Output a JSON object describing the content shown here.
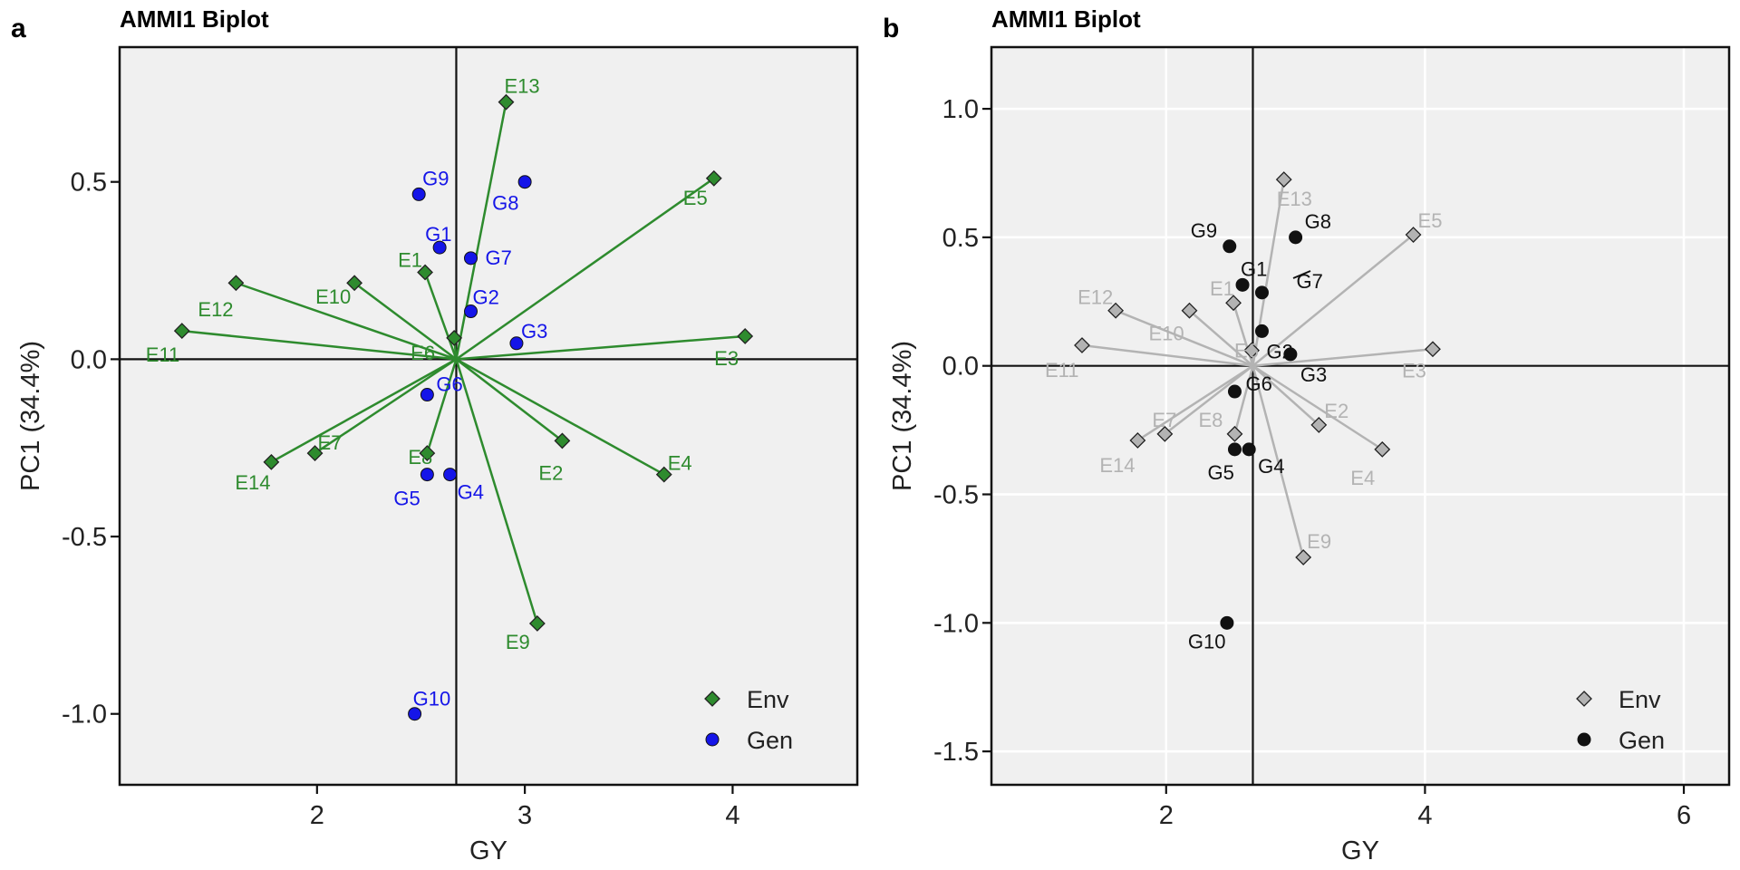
{
  "chart_data": [
    {
      "panel": "a",
      "type": "scatter",
      "title": "AMMI1 Biplot",
      "xlabel": "GY",
      "ylabel": "PC1 (34.4%)",
      "xlim": [
        1.05,
        4.6
      ],
      "ylim": [
        -1.2,
        0.88
      ],
      "xticks": [
        2,
        3,
        4
      ],
      "yticks": [
        0.5,
        0.0,
        -0.5,
        -1.0
      ],
      "ytick_labels": [
        "0.5",
        "0.0",
        "-0.5",
        "-1.0"
      ],
      "grid": false,
      "reference_lines": {
        "x": 2.67,
        "y": 0.0
      },
      "legend": {
        "placement": "bottom-right",
        "entries": [
          "Env",
          "Gen"
        ]
      },
      "colors": {
        "env": "#2E8B2E",
        "env_label": "#2E8B2E",
        "gen": "#1515E8",
        "gen_label": "#1515E8",
        "background": "#F0F0F0"
      },
      "series": [
        {
          "name": "Env",
          "marker": "diamond",
          "vectors_from_origin": true,
          "points": [
            {
              "label": "E1",
              "x": 2.52,
              "y": 0.245
            },
            {
              "label": "E2",
              "x": 3.18,
              "y": -0.23
            },
            {
              "label": "E3",
              "x": 4.06,
              "y": 0.065
            },
            {
              "label": "E4",
              "x": 3.67,
              "y": -0.325
            },
            {
              "label": "E5",
              "x": 3.91,
              "y": 0.51
            },
            {
              "label": "E6",
              "x": 2.66,
              "y": 0.06
            },
            {
              "label": "E7",
              "x": 1.99,
              "y": -0.265
            },
            {
              "label": "E8",
              "x": 2.53,
              "y": -0.265
            },
            {
              "label": "E9",
              "x": 3.06,
              "y": -0.745
            },
            {
              "label": "E10",
              "x": 2.18,
              "y": 0.215
            },
            {
              "label": "E11",
              "x": 1.35,
              "y": 0.08
            },
            {
              "label": "E12",
              "x": 1.61,
              "y": 0.215
            },
            {
              "label": "E13",
              "x": 2.91,
              "y": 0.725
            },
            {
              "label": "E14",
              "x": 1.78,
              "y": -0.29
            }
          ]
        },
        {
          "name": "Gen",
          "marker": "circle",
          "points": [
            {
              "label": "G1",
              "x": 2.59,
              "y": 0.315
            },
            {
              "label": "G2",
              "x": 2.74,
              "y": 0.135
            },
            {
              "label": "G3",
              "x": 2.96,
              "y": 0.045
            },
            {
              "label": "G4",
              "x": 2.64,
              "y": -0.325
            },
            {
              "label": "G5",
              "x": 2.53,
              "y": -0.325
            },
            {
              "label": "G6",
              "x": 2.53,
              "y": -0.1
            },
            {
              "label": "G7",
              "x": 2.74,
              "y": 0.285
            },
            {
              "label": "G8",
              "x": 3.0,
              "y": 0.5
            },
            {
              "label": "G9",
              "x": 2.49,
              "y": 0.465
            },
            {
              "label": "G10",
              "x": 2.47,
              "y": -1.0
            }
          ]
        }
      ]
    },
    {
      "panel": "b",
      "type": "scatter",
      "title": "AMMI1 Biplot",
      "xlabel": "GY",
      "ylabel": "PC1 (34.4%)",
      "xlim": [
        0.65,
        6.35
      ],
      "ylim": [
        -1.63,
        1.24
      ],
      "xticks": [
        2,
        4,
        6
      ],
      "yticks": [
        1.0,
        0.5,
        0.0,
        -0.5,
        -1.0,
        -1.5
      ],
      "ytick_labels": [
        "1.0",
        "0.5",
        "0.0",
        "-0.5",
        "-1.0",
        "-1.5"
      ],
      "grid": true,
      "reference_lines": {
        "x": 2.67,
        "y": 0.0
      },
      "legend": {
        "placement": "bottom-right",
        "entries": [
          "Env",
          "Gen"
        ]
      },
      "colors": {
        "env": "#B3B3B3",
        "env_label": "#B3B3B3",
        "gen": "#111111",
        "gen_label": "#111111",
        "background": "#F0F0F0"
      },
      "series": [
        {
          "name": "Env",
          "marker": "diamond",
          "vectors_from_origin": true,
          "points": [
            {
              "label": "E1",
              "x": 2.52,
              "y": 0.245
            },
            {
              "label": "E2",
              "x": 3.18,
              "y": -0.23
            },
            {
              "label": "E3",
              "x": 4.06,
              "y": 0.065
            },
            {
              "label": "E4",
              "x": 3.67,
              "y": -0.325
            },
            {
              "label": "E5",
              "x": 3.91,
              "y": 0.51
            },
            {
              "label": "E6",
              "x": 2.66,
              "y": 0.06
            },
            {
              "label": "E7",
              "x": 1.99,
              "y": -0.265
            },
            {
              "label": "E8",
              "x": 2.53,
              "y": -0.265
            },
            {
              "label": "E9",
              "x": 3.06,
              "y": -0.745
            },
            {
              "label": "E10",
              "x": 2.18,
              "y": 0.215
            },
            {
              "label": "E11",
              "x": 1.35,
              "y": 0.08
            },
            {
              "label": "E12",
              "x": 1.61,
              "y": 0.215
            },
            {
              "label": "E13",
              "x": 2.91,
              "y": 0.725
            },
            {
              "label": "E14",
              "x": 1.78,
              "y": -0.29
            }
          ]
        },
        {
          "name": "Gen",
          "marker": "circle",
          "points": [
            {
              "label": "G1",
              "x": 2.59,
              "y": 0.315
            },
            {
              "label": "G2",
              "x": 2.74,
              "y": 0.135
            },
            {
              "label": "G3",
              "x": 2.96,
              "y": 0.045
            },
            {
              "label": "G4",
              "x": 2.64,
              "y": -0.325
            },
            {
              "label": "G5",
              "x": 2.53,
              "y": -0.325
            },
            {
              "label": "G6",
              "x": 2.53,
              "y": -0.1
            },
            {
              "label": "G7",
              "x": 2.74,
              "y": 0.285
            },
            {
              "label": "G8",
              "x": 3.0,
              "y": 0.5
            },
            {
              "label": "G9",
              "x": 2.49,
              "y": 0.465
            },
            {
              "label": "G10",
              "x": 2.47,
              "y": -1.0
            }
          ]
        }
      ]
    }
  ]
}
